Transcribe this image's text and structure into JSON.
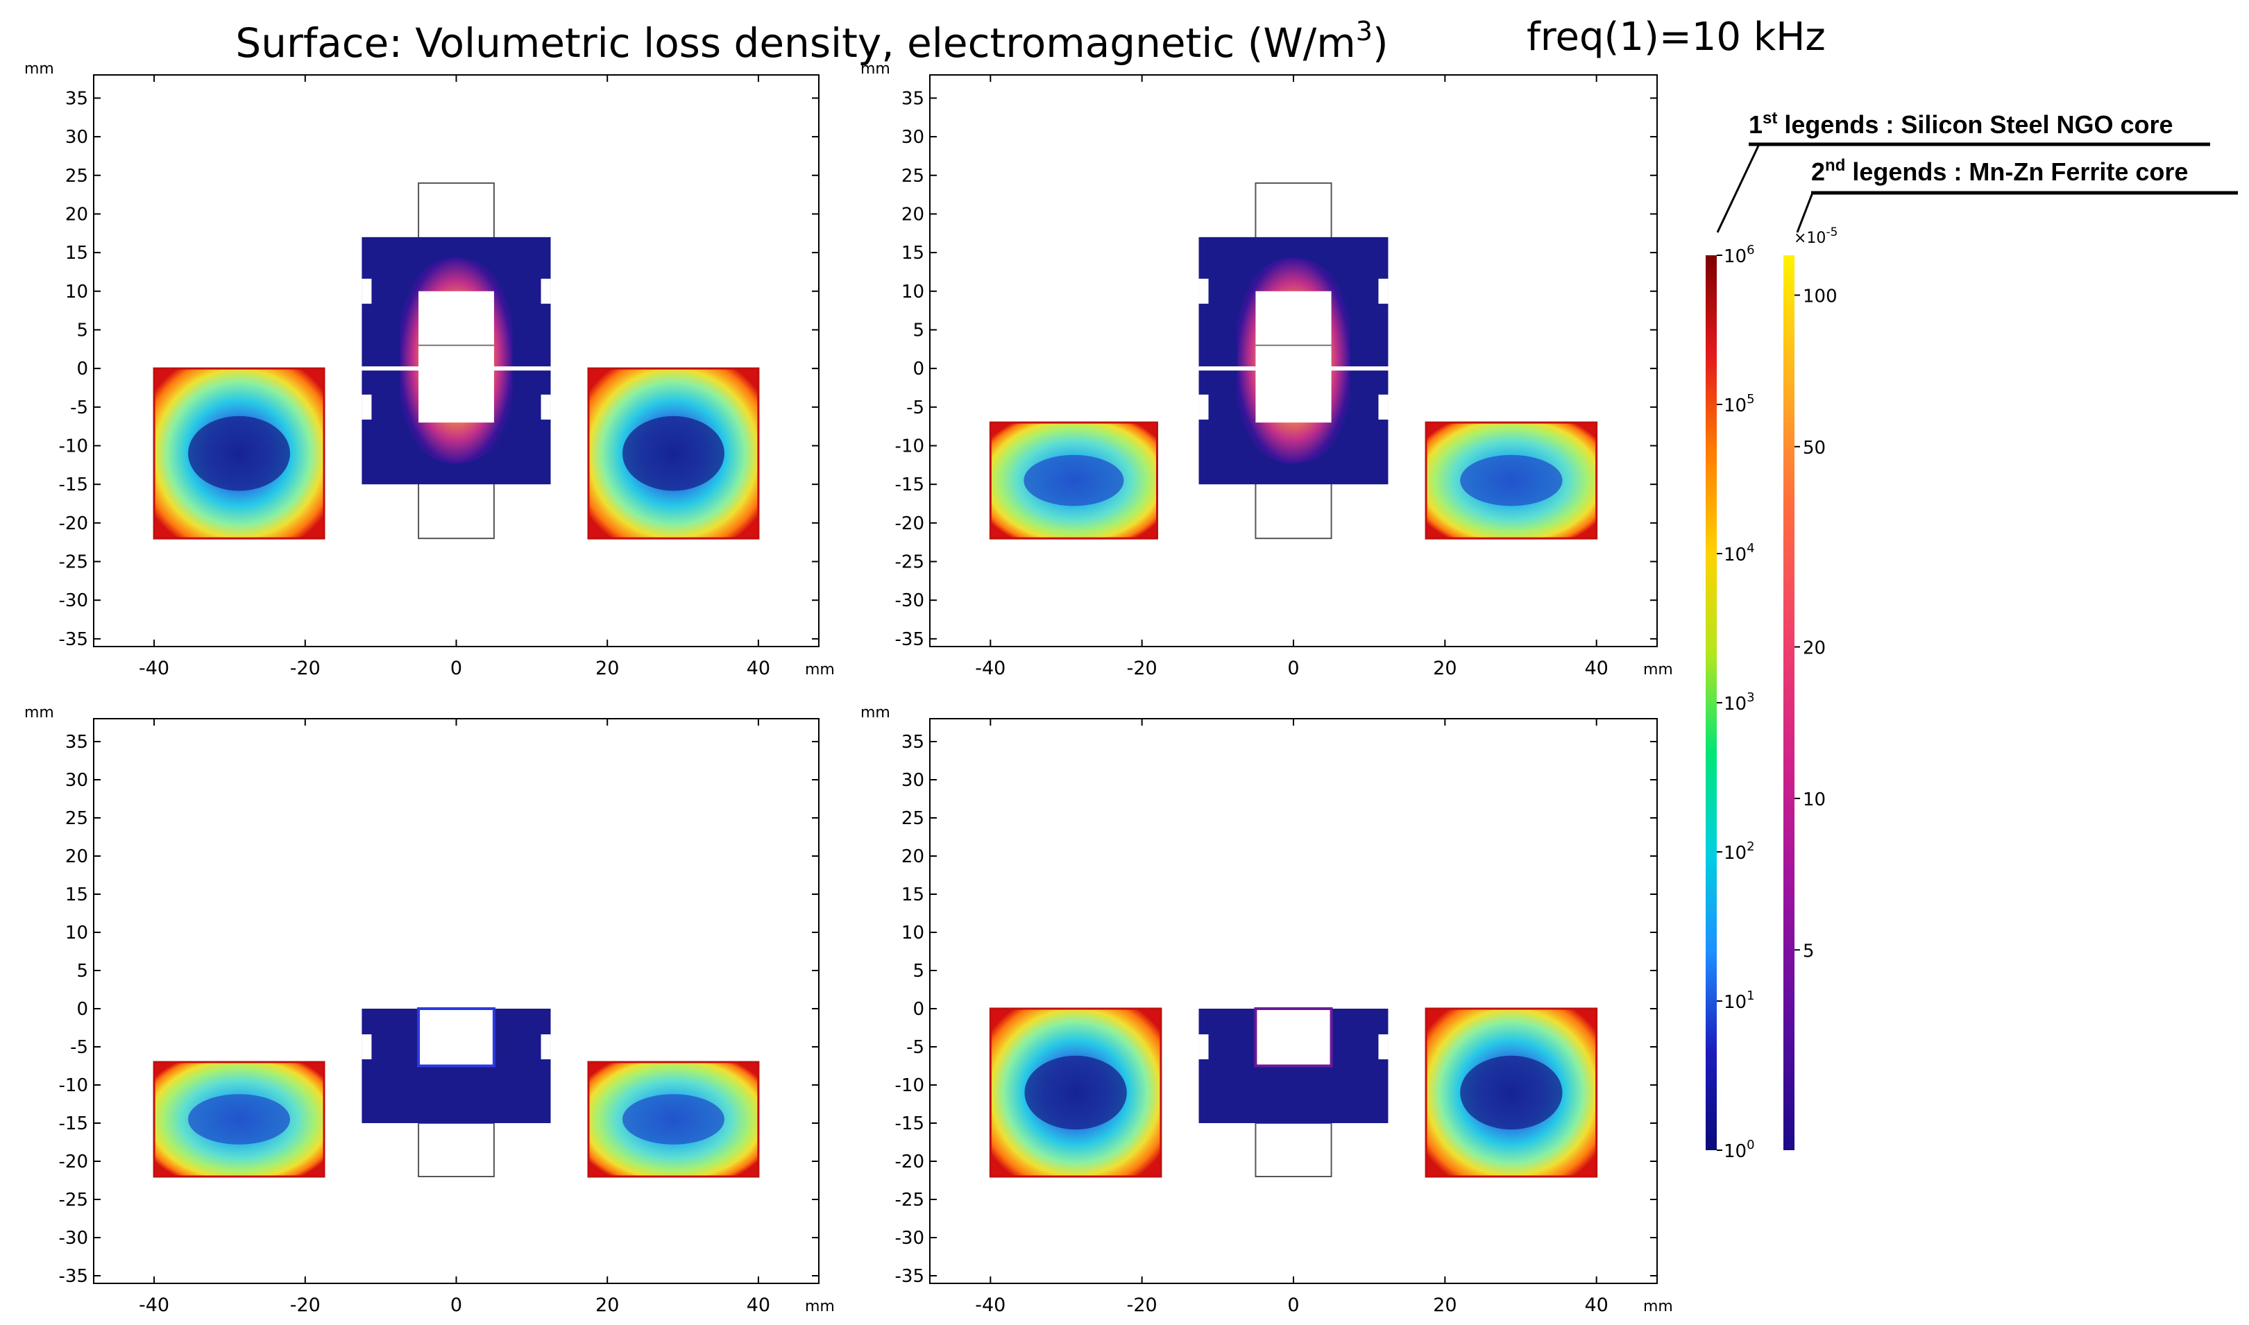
{
  "title": {
    "main": "Surface: Volumetric loss density, electromagnetic (W/m",
    "main_sup": "3",
    "main_end": ")",
    "freq": "freq(1)=10 kHz"
  },
  "legend_notes": {
    "first_prefix": "1",
    "first_sup": "st",
    "first_text": " legends : Silicon Steel NGO core",
    "second_prefix": "2",
    "second_sup": "nd",
    "second_text": "  legends : Mn-Zn Ferrite core"
  },
  "colors": {
    "core_low": "#1a1a8c",
    "frame": "#000000",
    "background": "#ffffff"
  },
  "chart_data": [
    {
      "type": "heatmap",
      "panel": "top-left",
      "xlim": [
        -48,
        48
      ],
      "ylim": [
        -36,
        38
      ],
      "x_ticks": [
        -40,
        -20,
        0,
        20,
        40
      ],
      "y_ticks": [
        35,
        30,
        25,
        20,
        15,
        10,
        5,
        0,
        -5,
        -10,
        -15,
        -20,
        -25,
        -30,
        -35
      ],
      "x_unit": "mm",
      "y_unit": "mm",
      "windings": [
        {
          "x": [
            -40,
            -17.5
          ],
          "y": [
            -22,
            0
          ]
        },
        {
          "x": [
            17.5,
            40
          ],
          "y": [
            -22,
            0
          ]
        }
      ],
      "core": {
        "shape": "E-I",
        "x": [
          -12.5,
          12.5
        ],
        "y": [
          -15,
          17
        ],
        "window_x": [
          -5,
          5
        ],
        "window_y": [
          -7,
          10
        ],
        "gap_y": 0
      },
      "bobbin": {
        "x": [
          -5,
          5
        ],
        "y": [
          -22,
          24
        ]
      }
    },
    {
      "type": "heatmap",
      "panel": "top-right",
      "xlim": [
        -48,
        48
      ],
      "ylim": [
        -36,
        38
      ],
      "x_ticks": [
        -40,
        -20,
        0,
        20,
        40
      ],
      "y_ticks": [
        35,
        30,
        25,
        20,
        15,
        10,
        5,
        0,
        -5,
        -10,
        -15,
        -20,
        -25,
        -30,
        -35
      ],
      "x_unit": "mm",
      "y_unit": "mm",
      "windings": [
        {
          "x": [
            -40,
            -18
          ],
          "y": [
            -22,
            -7
          ]
        },
        {
          "x": [
            17.5,
            40
          ],
          "y": [
            -22,
            -7
          ]
        }
      ],
      "core": {
        "shape": "E-I",
        "x": [
          -12.5,
          12.5
        ],
        "y": [
          -15,
          17
        ],
        "window_x": [
          -5,
          5
        ],
        "window_y": [
          -7,
          10
        ],
        "gap_y": 0
      },
      "bobbin": {
        "x": [
          -5,
          5
        ],
        "y": [
          -22,
          24
        ]
      }
    },
    {
      "type": "heatmap",
      "panel": "bottom-left",
      "xlim": [
        -48,
        48
      ],
      "ylim": [
        -36,
        38
      ],
      "x_ticks": [
        -40,
        -20,
        0,
        20,
        40
      ],
      "y_ticks": [
        35,
        30,
        25,
        20,
        15,
        10,
        5,
        0,
        -5,
        -10,
        -15,
        -20,
        -25,
        -30,
        -35
      ],
      "x_unit": "mm",
      "y_unit": "mm",
      "windings": [
        {
          "x": [
            -40,
            -17.5
          ],
          "y": [
            -22,
            -7
          ]
        },
        {
          "x": [
            17.5,
            40
          ],
          "y": [
            -22,
            -7
          ]
        }
      ],
      "core": {
        "shape": "E",
        "x": [
          -12.5,
          12.5
        ],
        "y": [
          -15,
          0
        ],
        "window_x": [
          -5,
          5
        ],
        "window_y": [
          -7.5,
          0
        ]
      },
      "bobbin": {
        "x": [
          -5,
          5
        ],
        "y": [
          -22,
          -15
        ]
      }
    },
    {
      "type": "heatmap",
      "panel": "bottom-right",
      "xlim": [
        -48,
        48
      ],
      "ylim": [
        -36,
        38
      ],
      "x_ticks": [
        -40,
        -20,
        0,
        20,
        40
      ],
      "y_ticks": [
        35,
        30,
        25,
        20,
        15,
        10,
        5,
        0,
        -5,
        -10,
        -15,
        -20,
        -25,
        -30,
        -35
      ],
      "x_unit": "mm",
      "y_unit": "mm",
      "windings": [
        {
          "x": [
            -40,
            -17.5
          ],
          "y": [
            -22,
            0
          ]
        },
        {
          "x": [
            17.5,
            40
          ],
          "y": [
            -22,
            0
          ]
        }
      ],
      "core": {
        "shape": "E",
        "x": [
          -12.5,
          12.5
        ],
        "y": [
          -15,
          0
        ],
        "window_x": [
          -5,
          5
        ],
        "window_y": [
          -7.5,
          0
        ]
      },
      "bobbin": {
        "x": [
          -5,
          5
        ],
        "y": [
          -22,
          -15
        ]
      }
    }
  ],
  "colorbars": [
    {
      "name": "1st",
      "scale": "log",
      "range": [
        1,
        1000000
      ],
      "tick_bases": [
        "10",
        "10",
        "10",
        "10",
        "10",
        "10",
        "10"
      ],
      "tick_exps": [
        "6",
        "5",
        "4",
        "3",
        "2",
        "1",
        "0"
      ],
      "colormap": [
        "#7f0000",
        "#e31a1c",
        "#ff7f00",
        "#ffd200",
        "#b5e61d",
        "#00e676",
        "#00d0e0",
        "#1e90ff",
        "#1c1cbe",
        "#0a0a7a"
      ]
    },
    {
      "name": "2nd",
      "scale": "log",
      "multiplier_base": "×10",
      "multiplier_exp": "-5",
      "ticks": [
        "100",
        "50",
        "20",
        "10",
        "5"
      ],
      "tick_values": [
        100,
        50,
        20,
        10,
        5
      ],
      "range": [
        2,
        120
      ],
      "colormap": [
        "#fff200",
        "#ffb020",
        "#ff6a40",
        "#f0406a",
        "#d0208a",
        "#9a12a0",
        "#5a0ca0",
        "#1c0a8a"
      ]
    }
  ]
}
